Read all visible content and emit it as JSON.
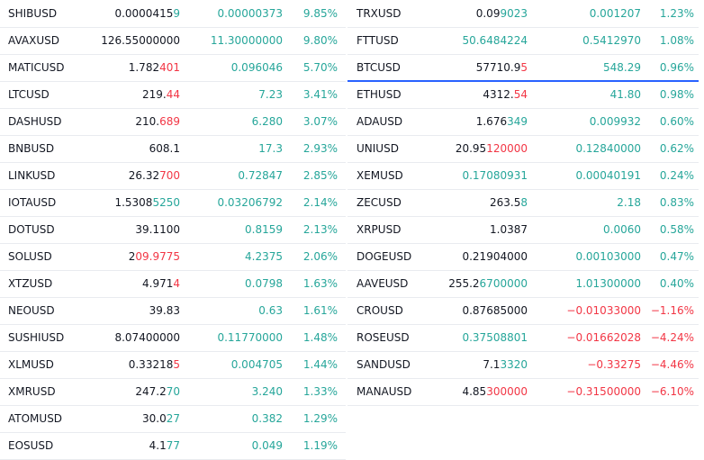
{
  "colors": {
    "up": "#26a69a",
    "down": "#f23645",
    "neutral": "#131722",
    "selection": "#2962ff"
  },
  "left": [
    {
      "symbol": "SHIBUSD",
      "last_a": "0.0000415",
      "last_b": "9",
      "last_dir": "up",
      "change": "0.00000373",
      "change_dir": "up",
      "pct": "9.85%",
      "pct_dir": "up"
    },
    {
      "symbol": "AVAXUSD",
      "last_a": "126.55000000",
      "last_b": "",
      "last_dir": "up",
      "change": "11.30000000",
      "change_dir": "up",
      "pct": "9.80%",
      "pct_dir": "up"
    },
    {
      "symbol": "MATICUSD",
      "last_a": "1.782",
      "last_b": "401",
      "last_dir": "down",
      "change": "0.096046",
      "change_dir": "up",
      "pct": "5.70%",
      "pct_dir": "up"
    },
    {
      "symbol": "LTCUSD",
      "last_a": "219.",
      "last_b": "44",
      "last_dir": "down",
      "change": "7.23",
      "change_dir": "up",
      "pct": "3.41%",
      "pct_dir": "up"
    },
    {
      "symbol": "DASHUSD",
      "last_a": "210.",
      "last_b": "689",
      "last_dir": "down",
      "change": "6.280",
      "change_dir": "up",
      "pct": "3.07%",
      "pct_dir": "up"
    },
    {
      "symbol": "BNBUSD",
      "last_a": "608.1",
      "last_b": "",
      "last_dir": "up",
      "change": "17.3",
      "change_dir": "up",
      "pct": "2.93%",
      "pct_dir": "up"
    },
    {
      "symbol": "LINKUSD",
      "last_a": "26.32",
      "last_b": "700",
      "last_dir": "down",
      "change": "0.72847",
      "change_dir": "up",
      "pct": "2.85%",
      "pct_dir": "up"
    },
    {
      "symbol": "IOTAUSD",
      "last_a": "1.5308",
      "last_b": "5250",
      "last_dir": "up",
      "change": "0.03206792",
      "change_dir": "up",
      "pct": "2.14%",
      "pct_dir": "up"
    },
    {
      "symbol": "DOTUSD",
      "last_a": "39.1100",
      "last_b": "",
      "last_dir": "up",
      "change": "0.8159",
      "change_dir": "up",
      "pct": "2.13%",
      "pct_dir": "up"
    },
    {
      "symbol": "SOLUSD",
      "last_a": "2",
      "last_b": "09.9775",
      "last_dir": "down",
      "change": "4.2375",
      "change_dir": "up",
      "pct": "2.06%",
      "pct_dir": "up"
    },
    {
      "symbol": "XTZUSD",
      "last_a": "4.971",
      "last_b": "4",
      "last_dir": "down",
      "change": "0.0798",
      "change_dir": "up",
      "pct": "1.63%",
      "pct_dir": "up"
    },
    {
      "symbol": "NEOUSD",
      "last_a": "39.83",
      "last_b": "",
      "last_dir": "up",
      "change": "0.63",
      "change_dir": "up",
      "pct": "1.61%",
      "pct_dir": "up"
    },
    {
      "symbol": "SUSHIUSD",
      "last_a": "8.07400000",
      "last_b": "",
      "last_dir": "up",
      "change": "0.11770000",
      "change_dir": "up",
      "pct": "1.48%",
      "pct_dir": "up"
    },
    {
      "symbol": "XLMUSD",
      "last_a": "0.33218",
      "last_b": "5",
      "last_dir": "down",
      "change": "0.004705",
      "change_dir": "up",
      "pct": "1.44%",
      "pct_dir": "up"
    },
    {
      "symbol": "XMRUSD",
      "last_a": "247.2",
      "last_b": "70",
      "last_dir": "up",
      "change": "3.240",
      "change_dir": "up",
      "pct": "1.33%",
      "pct_dir": "up"
    },
    {
      "symbol": "ATOMUSD",
      "last_a": "30.0",
      "last_b": "27",
      "last_dir": "up",
      "change": "0.382",
      "change_dir": "up",
      "pct": "1.29%",
      "pct_dir": "up"
    },
    {
      "symbol": "EOSUSD",
      "last_a": "4.1",
      "last_b": "77",
      "last_dir": "up",
      "change": "0.049",
      "change_dir": "up",
      "pct": "1.19%",
      "pct_dir": "up"
    }
  ],
  "right": [
    {
      "symbol": "TRXUSD",
      "last_a": "0.09",
      "last_b": "9023",
      "last_dir": "up",
      "change": "0.001207",
      "change_dir": "up",
      "pct": "1.23%",
      "pct_dir": "up"
    },
    {
      "symbol": "FTTUSD",
      "last_a": "",
      "last_b": "50.6484224",
      "last_dir": "up",
      "change": "0.5412970",
      "change_dir": "up",
      "pct": "1.08%",
      "pct_dir": "up"
    },
    {
      "symbol": "BTCUSD",
      "last_a": "57710.9",
      "last_b": "5",
      "last_dir": "down",
      "change": "548.29",
      "change_dir": "up",
      "pct": "0.96%",
      "pct_dir": "up",
      "selected": true
    },
    {
      "symbol": "ETHUSD",
      "last_a": "4312.",
      "last_b": "54",
      "last_dir": "down",
      "change": "41.80",
      "change_dir": "up",
      "pct": "0.98%",
      "pct_dir": "up"
    },
    {
      "symbol": "ADAUSD",
      "last_a": "1.676",
      "last_b": "349",
      "last_dir": "up",
      "change": "0.009932",
      "change_dir": "up",
      "pct": "0.60%",
      "pct_dir": "up"
    },
    {
      "symbol": "UNIUSD",
      "last_a": "20.95",
      "last_b": "120000",
      "last_dir": "down",
      "change": "0.12840000",
      "change_dir": "up",
      "pct": "0.62%",
      "pct_dir": "up"
    },
    {
      "symbol": "XEMUSD",
      "last_a": "",
      "last_b": "0.17080931",
      "last_dir": "up",
      "change": "0.00040191",
      "change_dir": "up",
      "pct": "0.24%",
      "pct_dir": "up"
    },
    {
      "symbol": "ZECUSD",
      "last_a": "263.5",
      "last_b": "8",
      "last_dir": "up",
      "change": "2.18",
      "change_dir": "up",
      "pct": "0.83%",
      "pct_dir": "up"
    },
    {
      "symbol": "XRPUSD",
      "last_a": "1.0387",
      "last_b": "",
      "last_dir": "up",
      "change": "0.0060",
      "change_dir": "up",
      "pct": "0.58%",
      "pct_dir": "up"
    },
    {
      "symbol": "DOGEUSD",
      "last_a": "0.21904000",
      "last_b": "",
      "last_dir": "up",
      "change": "0.00103000",
      "change_dir": "up",
      "pct": "0.47%",
      "pct_dir": "up"
    },
    {
      "symbol": "AAVEUSD",
      "last_a": "255.2",
      "last_b": "6700000",
      "last_dir": "up",
      "change": "1.01300000",
      "change_dir": "up",
      "pct": "0.40%",
      "pct_dir": "up"
    },
    {
      "symbol": "CROUSD",
      "last_a": "0.87685000",
      "last_b": "",
      "last_dir": "up",
      "change": "−0.01033000",
      "change_dir": "down",
      "pct": "−1.16%",
      "pct_dir": "down"
    },
    {
      "symbol": "ROSEUSD",
      "last_a": "",
      "last_b": "0.37508801",
      "last_dir": "up",
      "change": "−0.01662028",
      "change_dir": "down",
      "pct": "−4.24%",
      "pct_dir": "down"
    },
    {
      "symbol": "SANDUSD",
      "last_a": "7.1",
      "last_b": "3320",
      "last_dir": "up",
      "change": "−0.33275",
      "change_dir": "down",
      "pct": "−4.46%",
      "pct_dir": "down"
    },
    {
      "symbol": "MANAUSD",
      "last_a": "4.85",
      "last_b": "300000",
      "last_dir": "down",
      "change": "−0.31500000",
      "change_dir": "down",
      "pct": "−6.10%",
      "pct_dir": "down"
    }
  ]
}
